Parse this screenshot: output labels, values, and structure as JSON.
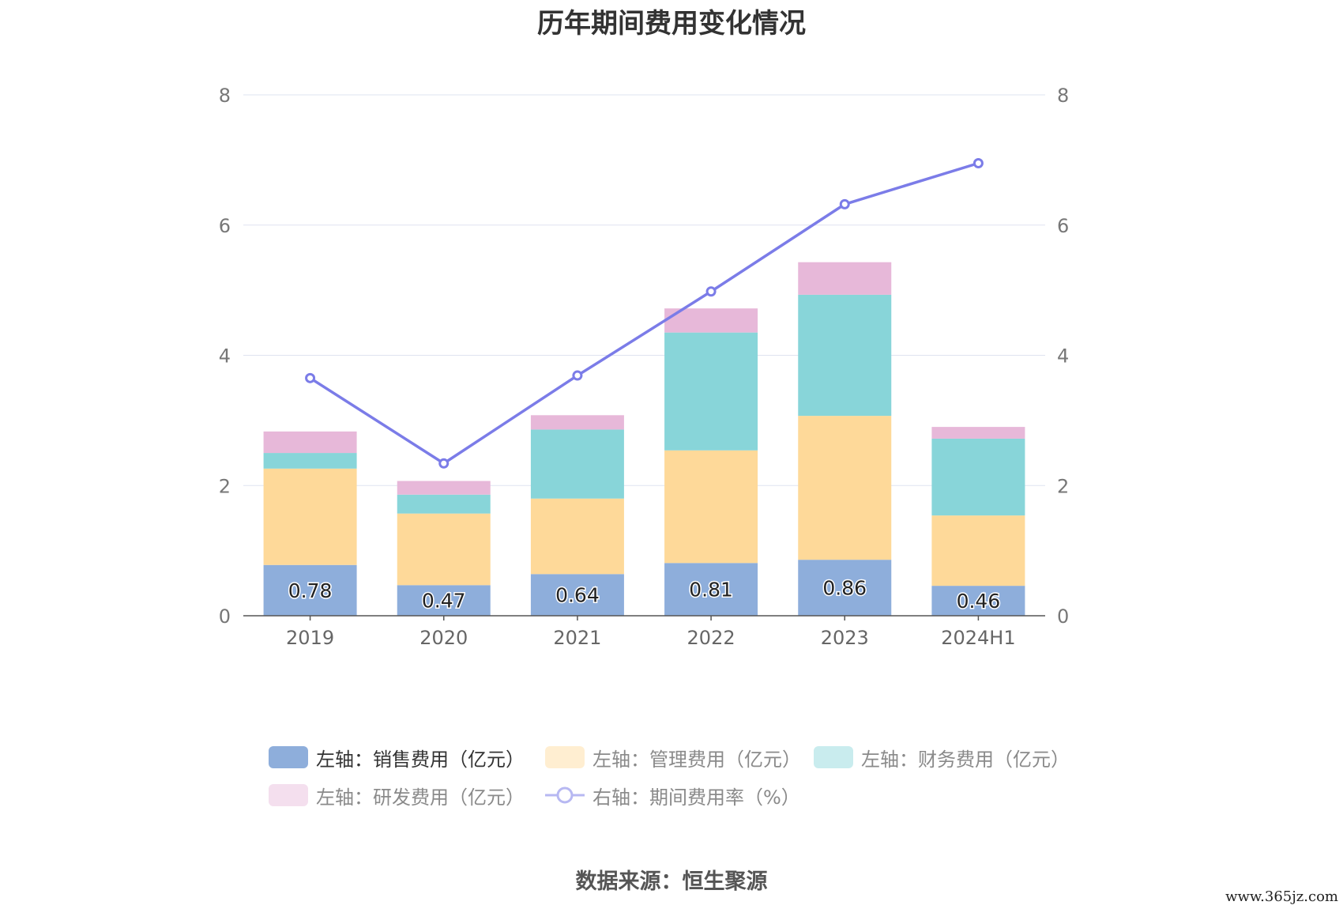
{
  "title": "历年期间费用变化情况",
  "source": "数据来源：恒生聚源",
  "watermark": "www.365jz.com",
  "chart_data": {
    "type": "bar",
    "stacked": true,
    "categories": [
      "2019",
      "2020",
      "2021",
      "2022",
      "2023",
      "2024H1"
    ],
    "left_axis": {
      "min": 0,
      "max": 8,
      "ticks": [
        0,
        2,
        4,
        6,
        8
      ]
    },
    "right_axis": {
      "min": 0,
      "max": 8,
      "ticks": [
        0,
        2,
        4,
        6,
        8
      ]
    },
    "grid": true,
    "legend_position": "bottom",
    "series": [
      {
        "name": "左轴：销售费用（亿元）",
        "axis": "left",
        "kind": "bar",
        "color": "#8eaedb",
        "values": [
          0.78,
          0.47,
          0.64,
          0.81,
          0.86,
          0.46
        ],
        "show_labels": true
      },
      {
        "name": "左轴：管理费用（亿元）",
        "axis": "left",
        "kind": "bar",
        "color": "#fed999",
        "values": [
          1.48,
          1.1,
          1.16,
          1.73,
          2.21,
          1.08
        ]
      },
      {
        "name": "左轴：财务费用（亿元）",
        "axis": "left",
        "kind": "bar",
        "color": "#88d5d9",
        "values": [
          0.24,
          0.29,
          1.06,
          1.81,
          1.86,
          1.18
        ]
      },
      {
        "name": "左轴：研发费用（亿元）",
        "axis": "left",
        "kind": "bar",
        "color": "#e7b8d9",
        "values": [
          0.33,
          0.21,
          0.22,
          0.37,
          0.5,
          0.18
        ]
      },
      {
        "name": "右轴：期间费用率（%）",
        "axis": "right",
        "kind": "line",
        "color": "#7b7ce8",
        "values": [
          3.65,
          2.34,
          3.69,
          4.98,
          6.32,
          6.95
        ]
      }
    ]
  }
}
